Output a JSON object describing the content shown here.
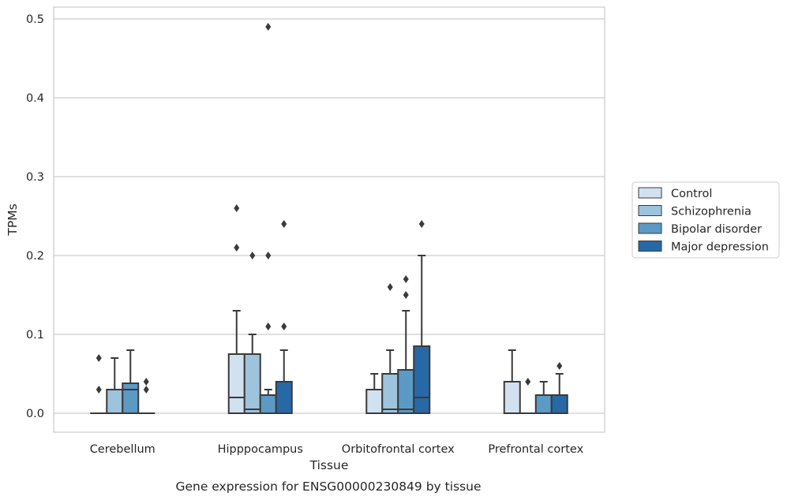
{
  "caption": "Gene expression for ENSG00000230849 by tissue",
  "chart_data": {
    "type": "box",
    "xlabel": "Tissue",
    "ylabel": "TPMs",
    "ylim": [
      -0.023,
      0.515
    ],
    "yticks": [
      0.0,
      0.1,
      0.2,
      0.3,
      0.4,
      0.5
    ],
    "ytick_labels": [
      "0.0",
      "0.1",
      "0.2",
      "0.3",
      "0.4",
      "0.5"
    ],
    "grid": "horizontal",
    "legend_position": "right",
    "categories": [
      "Cerebellum",
      "Hipppocampus",
      "Orbitofrontal cortex",
      "Prefrontal cortex"
    ],
    "series": [
      {
        "name": "Control",
        "color": "#d1e1f0",
        "boxes": [
          {
            "q1": 0.0,
            "median": 0.0,
            "q3": 0.0,
            "whislo": 0.0,
            "whishi": 0.0,
            "fliers": [
              0.03,
              0.07
            ]
          },
          {
            "q1": 0.0,
            "median": 0.02,
            "q3": 0.075,
            "whislo": 0.0,
            "whishi": 0.13,
            "fliers": [
              0.21,
              0.26
            ]
          },
          {
            "q1": 0.0,
            "median": 0.0,
            "q3": 0.03,
            "whislo": 0.0,
            "whishi": 0.05,
            "fliers": []
          },
          {
            "q1": 0.0,
            "median": 0.0,
            "q3": 0.04,
            "whislo": 0.0,
            "whishi": 0.08,
            "fliers": []
          }
        ]
      },
      {
        "name": "Schizophrenia",
        "color": "#9dc3dd",
        "boxes": [
          {
            "q1": 0.0,
            "median": 0.0,
            "q3": 0.03,
            "whislo": 0.0,
            "whishi": 0.07,
            "fliers": []
          },
          {
            "q1": 0.0,
            "median": 0.005,
            "q3": 0.075,
            "whislo": 0.0,
            "whishi": 0.1,
            "fliers": [
              0.2
            ]
          },
          {
            "q1": 0.0,
            "median": 0.005,
            "q3": 0.05,
            "whislo": 0.0,
            "whishi": 0.08,
            "fliers": [
              0.16
            ]
          },
          {
            "q1": 0.0,
            "median": 0.0,
            "q3": 0.0,
            "whislo": 0.0,
            "whishi": 0.0,
            "fliers": [
              0.04
            ]
          }
        ]
      },
      {
        "name": "Bipolar disorder",
        "color": "#5b9ac5",
        "boxes": [
          {
            "q1": 0.0,
            "median": 0.03,
            "q3": 0.038,
            "whislo": 0.0,
            "whishi": 0.08,
            "fliers": []
          },
          {
            "q1": 0.0,
            "median": 0.0,
            "q3": 0.023,
            "whislo": 0.0,
            "whishi": 0.03,
            "fliers": [
              0.11,
              0.2,
              0.49
            ]
          },
          {
            "q1": 0.0,
            "median": 0.005,
            "q3": 0.055,
            "whislo": 0.0,
            "whishi": 0.13,
            "fliers": [
              0.15,
              0.17
            ]
          },
          {
            "q1": 0.0,
            "median": 0.0,
            "q3": 0.023,
            "whislo": 0.0,
            "whishi": 0.04,
            "fliers": []
          }
        ]
      },
      {
        "name": "Major depression",
        "color": "#2769a6",
        "boxes": [
          {
            "q1": 0.0,
            "median": 0.0,
            "q3": 0.0,
            "whislo": 0.0,
            "whishi": 0.0,
            "fliers": [
              0.03,
              0.04
            ]
          },
          {
            "q1": 0.0,
            "median": 0.0,
            "q3": 0.04,
            "whislo": 0.0,
            "whishi": 0.08,
            "fliers": [
              0.11,
              0.24
            ]
          },
          {
            "q1": 0.0,
            "median": 0.02,
            "q3": 0.085,
            "whislo": 0.0,
            "whishi": 0.2,
            "fliers": [
              0.24
            ]
          },
          {
            "q1": 0.0,
            "median": 0.0,
            "q3": 0.023,
            "whislo": 0.0,
            "whishi": 0.05,
            "fliers": [
              0.06
            ]
          }
        ]
      }
    ]
  }
}
